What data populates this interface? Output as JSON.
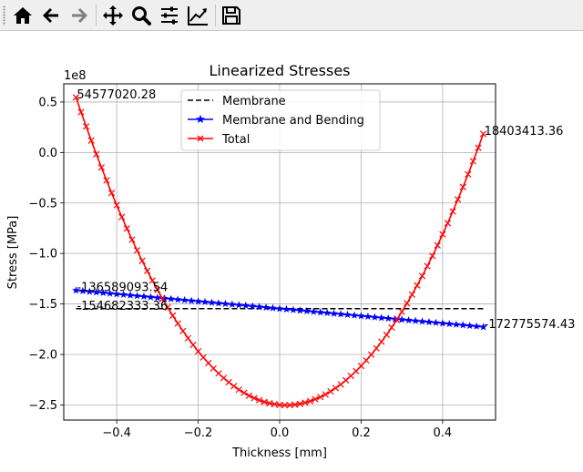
{
  "toolbar": {
    "buttons": [
      {
        "icon": "home-icon",
        "label": "Home"
      },
      {
        "icon": "back-arrow-icon",
        "label": "Back"
      },
      {
        "icon": "forward-arrow-icon",
        "label": "Forward"
      },
      {
        "icon": "pan-icon",
        "label": "Pan"
      },
      {
        "icon": "zoom-icon",
        "label": "Zoom"
      },
      {
        "icon": "subplots-icon",
        "label": "Subplots"
      },
      {
        "icon": "edit-axis-icon",
        "label": "Customize"
      },
      {
        "icon": "save-icon",
        "label": "Save"
      }
    ]
  },
  "chart_data": {
    "type": "line",
    "title": "Linearized Stresses",
    "xlabel": "Thickness [mm]",
    "ylabel": "Stress [MPa]",
    "offset_label": "1e8",
    "xlim": [
      -0.53,
      0.53
    ],
    "ylim": [
      -2.65,
      0.68
    ],
    "xticks": [
      -0.4,
      -0.2,
      0.0,
      0.2,
      0.4
    ],
    "xtick_labels": [
      "−0.4",
      "−0.2",
      "0.0",
      "0.2",
      "0.4"
    ],
    "yticks": [
      0.5,
      0.0,
      -0.5,
      -1.0,
      -1.5,
      -2.0,
      -2.5
    ],
    "ytick_labels": [
      "0.5",
      "0.0",
      "−0.5",
      "−1.0",
      "−1.5",
      "−2.0",
      "−2.5"
    ],
    "grid": true,
    "legend_position": "upper-center",
    "series": [
      {
        "name": "Membrane",
        "color": "#000000",
        "style": "dashed",
        "marker": "none",
        "x": [
          -0.5,
          0.5
        ],
        "y": [
          -1.5468,
          -1.5468
        ]
      },
      {
        "name": "Membrane and Bending",
        "color": "#0000ff",
        "style": "solid",
        "marker": "star",
        "x_start": -0.5,
        "x_end": 0.5,
        "points": 61,
        "y_start": -1.3659,
        "y_end": -1.7278
      },
      {
        "name": "Total",
        "color": "#ff0000",
        "style": "solid",
        "marker": "x",
        "x_start": -0.5,
        "x_end": 0.5,
        "points": 81,
        "y_start": 0.5458,
        "y_min": -2.5,
        "x_at_min": 0.0,
        "y_end": 0.184
      }
    ],
    "annotations": [
      {
        "text": "54577020.28",
        "x": -0.5,
        "y": 0.5458
      },
      {
        "text": "18403413.36",
        "x": 0.5,
        "y": 0.184
      },
      {
        "text": "-136589093.54",
        "x": -0.5,
        "y": -1.3659
      },
      {
        "text": "-154682333.36",
        "x": -0.5,
        "y": -1.5468
      },
      {
        "text": "-172775574.43",
        "x": 0.5,
        "y": -1.7278
      }
    ]
  }
}
